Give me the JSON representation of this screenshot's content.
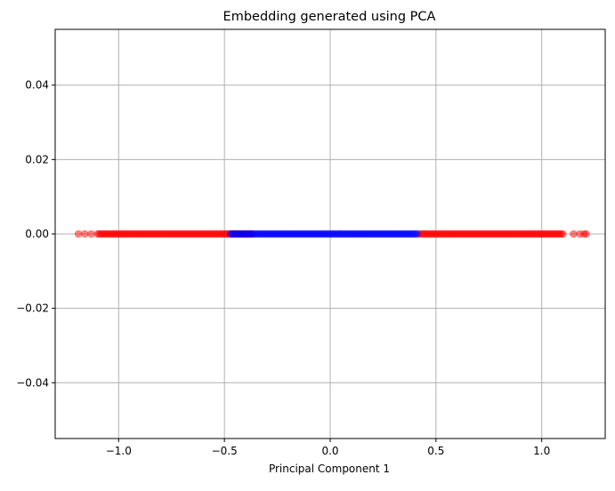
{
  "chart_data": {
    "type": "scatter",
    "title": "Embedding generated using PCA",
    "xlabel": "Principal Component 1",
    "ylabel": "",
    "xlim": [
      -1.3,
      1.3
    ],
    "ylim": [
      -0.055,
      0.055
    ],
    "xticks": [
      -1.0,
      -0.5,
      0.0,
      0.5,
      1.0
    ],
    "xtick_labels": [
      "−1.0",
      "−0.5",
      "0.0",
      "0.5",
      "1.0"
    ],
    "yticks": [
      -0.04,
      -0.02,
      0.0,
      0.02,
      0.04
    ],
    "ytick_labels": [
      "−0.04",
      "−0.02",
      "0.00",
      "0.02",
      "0.04"
    ],
    "grid": true,
    "legend": "none",
    "marker_alpha": 0.5,
    "series": [
      {
        "color": "#ff0000",
        "y": 0.0,
        "x_ranges": [
          [
            -1.1,
            -0.37
          ],
          [
            0.42,
            1.1
          ]
        ],
        "x_outliers": [
          -1.19,
          -1.16,
          -1.13,
          1.15,
          1.18,
          1.2,
          1.21
        ]
      },
      {
        "color": "#0000ff",
        "y": 0.0,
        "x_ranges": [
          [
            -0.47,
            0.41
          ]
        ],
        "x_outliers": []
      }
    ]
  }
}
